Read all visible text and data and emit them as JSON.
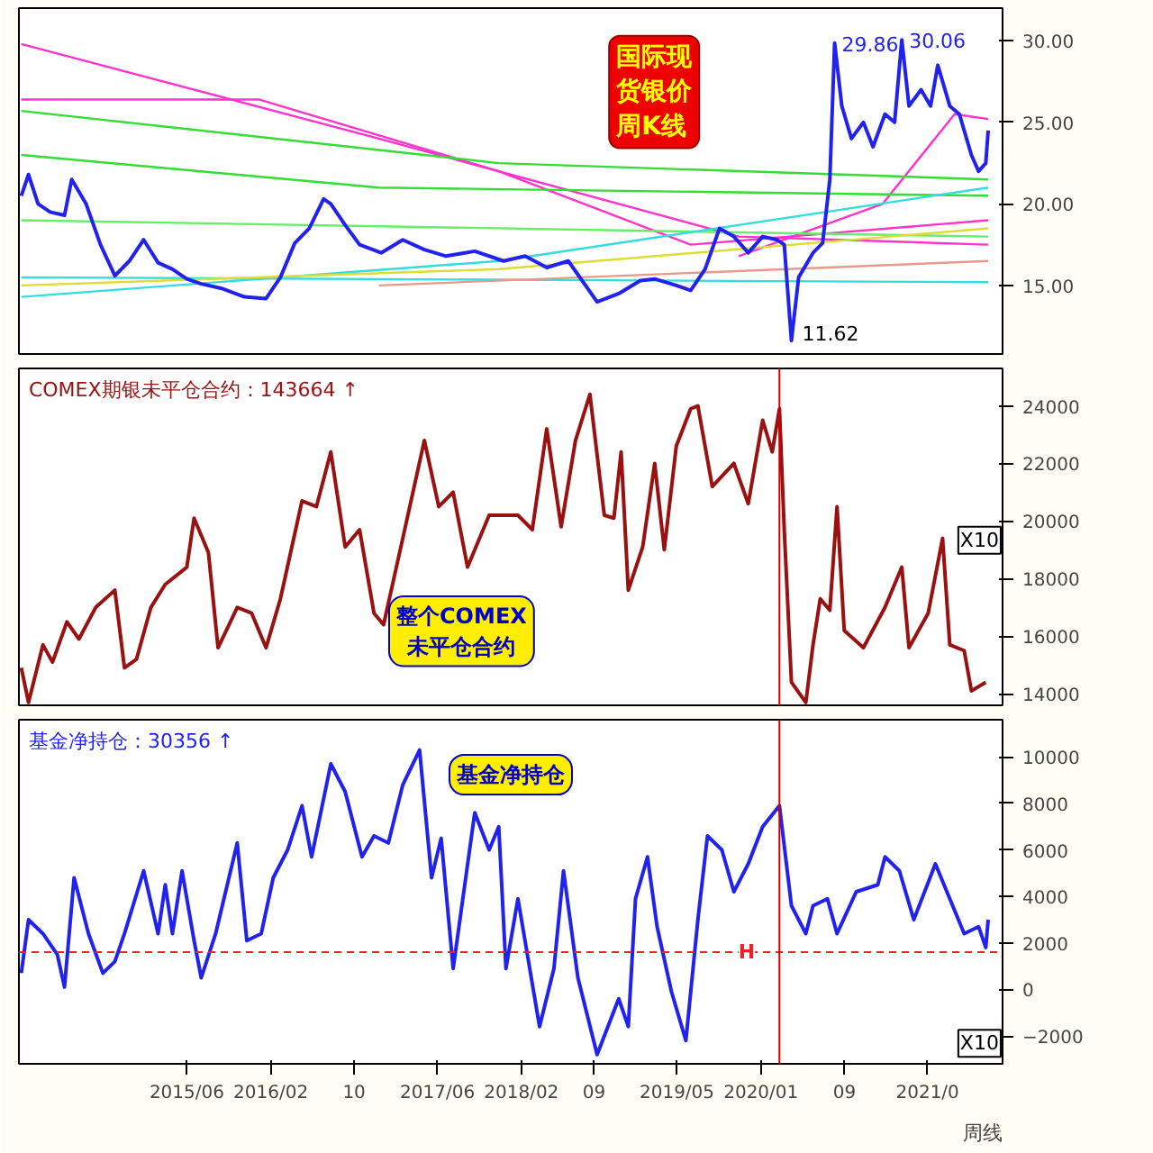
{
  "chart_data": [
    {
      "type": "line",
      "tick_labels": "y",
      "grid": false,
      "xlim": [
        "2014-01-27",
        "2021-12-06"
      ],
      "ylim": [
        10.8,
        32
      ],
      "yticks": [
        {
          "value": 15,
          "label": "15.00"
        },
        {
          "value": 20,
          "label": "20.00"
        },
        {
          "value": 25,
          "label": "25.00"
        },
        {
          "value": 30,
          "label": "30.00"
        }
      ],
      "annotations": [
        "国际现货银价周K线",
        {
          "text": "29.86",
          "x": "2020-08-03",
          "y": 29.86
        },
        {
          "text": "30.06",
          "x": "2021-02-15",
          "y": 30.06
        },
        {
          "text": "11.62",
          "x": "2020-03-30",
          "y": 11.62
        }
      ],
      "series": [
        {
          "color": "#ff33cc",
          "x": [
            "2014-02-03",
            "2016-12-12",
            "2019-10-28",
            "2021-10-25"
          ],
          "values": [
            29.8,
            24.0,
            18.0,
            17.5
          ]
        },
        {
          "color": "#ff33cc",
          "x": [
            "2014-02-03",
            "2015-12-28",
            "2017-11-27",
            "2019-06-10",
            "2021-10-25"
          ],
          "values": [
            26.4,
            26.4,
            22.0,
            17.5,
            19.0
          ]
        },
        {
          "color": "#ff33cc",
          "x": [
            "2019-10-28",
            "2020-12-21",
            "2021-07-19",
            "2021-10-25"
          ],
          "values": [
            16.8,
            20.0,
            25.5,
            25.2
          ]
        },
        {
          "color": "#33dd33",
          "x": [
            "2014-02-03",
            "2017-11-27",
            "2021-10-25"
          ],
          "values": [
            25.7,
            22.5,
            21.5
          ]
        },
        {
          "color": "#33dd33",
          "x": [
            "2014-02-03",
            "2016-12-12",
            "2021-10-25"
          ],
          "values": [
            23.0,
            21.0,
            20.5
          ]
        },
        {
          "color": "#66ee66",
          "x": [
            "2014-02-03",
            "2021-10-25"
          ],
          "values": [
            19.0,
            18.0
          ]
        },
        {
          "color": "#33dddd",
          "x": [
            "2014-02-03",
            "2017-11-27",
            "2021-10-25"
          ],
          "values": [
            14.3,
            16.5,
            21.0
          ]
        },
        {
          "color": "#33dddd",
          "x": [
            "2014-02-03",
            "2021-10-25"
          ],
          "values": [
            15.5,
            15.2
          ]
        },
        {
          "color": "#dddd33",
          "x": [
            "2014-02-03",
            "2017-11-27",
            "2021-10-25"
          ],
          "values": [
            15.0,
            16.0,
            18.5
          ]
        },
        {
          "color": "#e89a8a",
          "x": [
            "2016-12-12",
            "2021-10-25"
          ],
          "values": [
            15.0,
            16.5
          ]
        },
        {
          "color": "#2222ee",
          "x": [
            "2014-02-03",
            "2014-02-24",
            "2014-03-24",
            "2014-04-28",
            "2014-06-09",
            "2014-06-30",
            "2014-08-11",
            "2014-09-22",
            "2014-11-03",
            "2014-12-15",
            "2015-01-26",
            "2015-03-09",
            "2015-04-20",
            "2015-06-01",
            "2015-07-13",
            "2015-09-14",
            "2015-11-16",
            "2016-01-18",
            "2016-02-29",
            "2016-04-11",
            "2016-05-23",
            "2016-07-04",
            "2016-07-25",
            "2016-09-05",
            "2016-10-17",
            "2016-12-19",
            "2017-02-20",
            "2017-04-24",
            "2017-06-26",
            "2017-09-18",
            "2017-12-11",
            "2018-02-12",
            "2018-04-16",
            "2018-06-18",
            "2018-09-10",
            "2018-11-12",
            "2019-01-14",
            "2019-02-25",
            "2019-04-29",
            "2019-06-10",
            "2019-07-22",
            "2019-09-02",
            "2019-10-14",
            "2019-11-25",
            "2020-01-06",
            "2020-02-17",
            "2020-03-09",
            "2020-03-30",
            "2020-04-20",
            "2020-06-01",
            "2020-06-29",
            "2020-07-20",
            "2020-08-03",
            "2020-08-24",
            "2020-09-21",
            "2020-10-26",
            "2020-11-23",
            "2020-12-28",
            "2021-01-25",
            "2021-02-15",
            "2021-03-08",
            "2021-04-12",
            "2021-05-10",
            "2021-05-31",
            "2021-07-05",
            "2021-08-02",
            "2021-09-06",
            "2021-09-27",
            "2021-10-18",
            "2021-10-25"
          ],
          "values": [
            20.5,
            21.8,
            20.0,
            19.5,
            19.3,
            21.5,
            20.0,
            17.5,
            15.6,
            16.5,
            17.8,
            16.4,
            16.0,
            15.4,
            15.1,
            14.8,
            14.3,
            14.2,
            15.5,
            17.6,
            18.5,
            20.3,
            20.0,
            18.7,
            17.5,
            17.0,
            17.8,
            17.2,
            16.8,
            17.1,
            16.5,
            16.8,
            16.1,
            16.5,
            14.0,
            14.5,
            15.3,
            15.4,
            15.0,
            14.7,
            16.0,
            18.5,
            18.0,
            17.0,
            18.0,
            17.8,
            17.5,
            11.62,
            15.5,
            17.0,
            17.6,
            21.5,
            29.86,
            26.0,
            24.0,
            25.0,
            23.5,
            25.5,
            25.0,
            30.06,
            26.0,
            27.0,
            26.0,
            28.5,
            26.0,
            25.5,
            23.0,
            22.0,
            22.5,
            24.5
          ]
        }
      ]
    },
    {
      "type": "line",
      "tick_labels": "y",
      "grid": false,
      "xlim": [
        "2014-01-27",
        "2021-12-06"
      ],
      "ylim": [
        13600,
        25300
      ],
      "yticks": [
        14000,
        16000,
        18000,
        20000,
        22000,
        24000
      ],
      "annotations": [
        "COMEX期银未平仓合约：143664 ↑",
        "整个COMEX\n未平仓合约",
        "X10"
      ],
      "ref_lines": [
        {
          "axis": "x",
          "value": "2020-02-24",
          "color": "#cc0000",
          "line_style": "solid"
        }
      ],
      "series": [
        {
          "color": "#991111",
          "x": [
            "2014-02-03",
            "2014-02-24",
            "2014-04-07",
            "2014-05-05",
            "2014-06-16",
            "2014-07-21",
            "2014-09-08",
            "2014-11-03",
            "2014-12-01",
            "2015-01-05",
            "2015-02-16",
            "2015-03-30",
            "2015-06-01",
            "2015-06-22",
            "2015-08-03",
            "2015-08-31",
            "2015-10-26",
            "2015-12-07",
            "2016-01-18",
            "2016-02-29",
            "2016-05-02",
            "2016-06-13",
            "2016-07-25",
            "2016-09-05",
            "2016-10-17",
            "2016-11-28",
            "2016-12-26",
            "2017-02-20",
            "2017-04-24",
            "2017-06-05",
            "2017-07-17",
            "2017-08-28",
            "2017-10-30",
            "2018-01-22",
            "2018-03-05",
            "2018-04-16",
            "2018-05-28",
            "2018-07-09",
            "2018-08-20",
            "2018-10-01",
            "2018-10-29",
            "2018-11-19",
            "2018-12-10",
            "2019-01-21",
            "2019-02-25",
            "2019-03-25",
            "2019-04-29",
            "2019-06-10",
            "2019-07-01",
            "2019-08-12",
            "2019-10-14",
            "2019-11-25",
            "2020-01-06",
            "2020-02-03",
            "2020-02-24",
            "2020-03-09",
            "2020-03-30",
            "2020-05-11",
            "2020-06-01",
            "2020-06-22",
            "2020-07-20",
            "2020-08-10",
            "2020-08-31",
            "2020-10-26",
            "2020-12-28",
            "2021-02-15",
            "2021-03-08",
            "2021-05-03",
            "2021-06-14",
            "2021-07-05",
            "2021-08-16",
            "2021-09-06",
            "2021-10-18"
          ],
          "values": [
            14900,
            13700,
            15700,
            15100,
            16500,
            15900,
            17000,
            17600,
            14900,
            15200,
            17000,
            17800,
            18400,
            20100,
            18900,
            15600,
            17000,
            16800,
            15600,
            17300,
            20700,
            20500,
            22400,
            19100,
            19700,
            16800,
            16400,
            19400,
            22800,
            20500,
            21000,
            18400,
            20200,
            20200,
            19700,
            23200,
            19800,
            22800,
            24400,
            20200,
            20100,
            22400,
            17600,
            19100,
            22000,
            19000,
            22600,
            23900,
            24000,
            21200,
            22000,
            20600,
            23500,
            22400,
            23900,
            19700,
            14400,
            13700,
            15700,
            17300,
            16900,
            20500,
            16200,
            15600,
            17000,
            18400,
            15600,
            16800,
            19400,
            15700,
            15500,
            14100,
            14400
          ]
        }
      ]
    },
    {
      "type": "line",
      "grid": false,
      "xlim": [
        "2014-01-27",
        "2021-12-06"
      ],
      "ylim": [
        -3200,
        11600
      ],
      "xticks": [
        {
          "value": "2015-06",
          "label": "2015/06"
        },
        {
          "value": "2016-02",
          "label": "2016/02"
        },
        {
          "value": "2016-10",
          "label": "10"
        },
        {
          "value": "2017-06",
          "label": "2017/06"
        },
        {
          "value": "2018-02",
          "label": "2018/02"
        },
        {
          "value": "2018-09",
          "label": "09"
        },
        {
          "value": "2019-05",
          "label": "2019/05"
        },
        {
          "value": "2020-01",
          "label": "2020/01"
        },
        {
          "value": "2020-09",
          "label": "09"
        },
        {
          "value": "2021-05",
          "label": "2021/0"
        }
      ],
      "yticks": [
        -2000,
        0,
        2000,
        4000,
        6000,
        8000,
        10000
      ],
      "annotations": [
        "基金净持仓：30356 ↑",
        "基金净持仓",
        "X10",
        "周线"
      ],
      "ref_lines": [
        {
          "axis": "y",
          "value": 1600,
          "label": "H",
          "color": "#ee2222",
          "line_style": "dashed"
        },
        {
          "axis": "x",
          "value": "2020-02-24",
          "color": "#cc0000",
          "line_style": "solid"
        }
      ],
      "series": [
        {
          "color": "#2222ee",
          "x": [
            "2014-02-03",
            "2014-02-24",
            "2014-04-07",
            "2014-05-19",
            "2014-06-09",
            "2014-07-07",
            "2014-08-18",
            "2014-09-29",
            "2014-11-03",
            "2014-12-01",
            "2015-01-26",
            "2015-03-09",
            "2015-03-30",
            "2015-04-20",
            "2015-05-18",
            "2015-06-22",
            "2015-07-13",
            "2015-08-24",
            "2015-10-26",
            "2015-11-23",
            "2016-01-04",
            "2016-02-08",
            "2016-03-21",
            "2016-05-02",
            "2016-05-30",
            "2016-07-25",
            "2016-09-05",
            "2016-10-24",
            "2016-11-28",
            "2017-01-09",
            "2017-02-20",
            "2017-04-10",
            "2017-05-15",
            "2017-06-12",
            "2017-07-17",
            "2017-09-18",
            "2017-10-30",
            "2017-11-27",
            "2017-12-18",
            "2018-01-22",
            "2018-03-26",
            "2018-05-07",
            "2018-06-04",
            "2018-07-16",
            "2018-09-10",
            "2018-11-12",
            "2018-12-10",
            "2018-12-31",
            "2019-02-04",
            "2019-03-04",
            "2019-04-15",
            "2019-05-27",
            "2019-07-01",
            "2019-07-29",
            "2019-09-09",
            "2019-10-14",
            "2019-11-25",
            "2020-01-06",
            "2020-02-24",
            "2020-03-30",
            "2020-05-11",
            "2020-06-01",
            "2020-07-13",
            "2020-08-10",
            "2020-10-05",
            "2020-12-07",
            "2020-12-28",
            "2021-02-08",
            "2021-03-22",
            "2021-05-24",
            "2021-07-05",
            "2021-08-16",
            "2021-09-27",
            "2021-10-18",
            "2021-10-25"
          ],
          "values": [
            700,
            3000,
            2400,
            1500,
            100,
            4800,
            2400,
            700,
            1200,
            2400,
            5100,
            2400,
            4500,
            2400,
            5100,
            2100,
            500,
            2400,
            6300,
            2100,
            2400,
            4800,
            6000,
            7900,
            5700,
            9700,
            8500,
            5700,
            6600,
            6300,
            8800,
            10300,
            4800,
            6500,
            900,
            7600,
            6000,
            7000,
            900,
            3900,
            -1600,
            900,
            5100,
            500,
            -2800,
            -400,
            -1600,
            3900,
            5700,
            2700,
            -100,
            -2200,
            3000,
            6600,
            6000,
            4200,
            5400,
            7000,
            7900,
            3600,
            2400,
            3600,
            3900,
            2400,
            4200,
            4500,
            5700,
            5100,
            3000,
            5400,
            3900,
            2400,
            2700,
            1800,
            3000
          ]
        }
      ]
    }
  ]
}
